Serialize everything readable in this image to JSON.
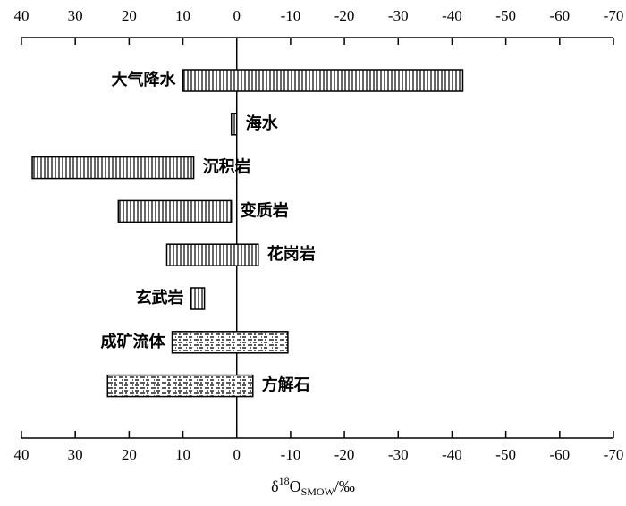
{
  "chart_data": {
    "type": "range-bar",
    "categories": [
      "大气降水",
      "海水",
      "沉积岩",
      "变质岩",
      "花岗岩",
      "玄武岩",
      "成矿流体",
      "方解石"
    ],
    "high": [
      10,
      1,
      38,
      22,
      13,
      8.5,
      12,
      24
    ],
    "low": [
      -42,
      0,
      8,
      1,
      -4,
      6,
      -9.5,
      -3
    ],
    "patterns": [
      "vertical",
      "vertical",
      "vertical",
      "vertical",
      "vertical",
      "vertical",
      "dash",
      "dash"
    ],
    "color": "#000000",
    "xlim": [
      40,
      -70
    ],
    "xticks": [
      40,
      30,
      20,
      10,
      0,
      -10,
      -20,
      -30,
      -40,
      -50,
      -60,
      -70
    ],
    "xlabel": {
      "delta": "δ",
      "sup": "18",
      "base": "O",
      "sub": "SMOW",
      "unit": "/‰"
    }
  }
}
